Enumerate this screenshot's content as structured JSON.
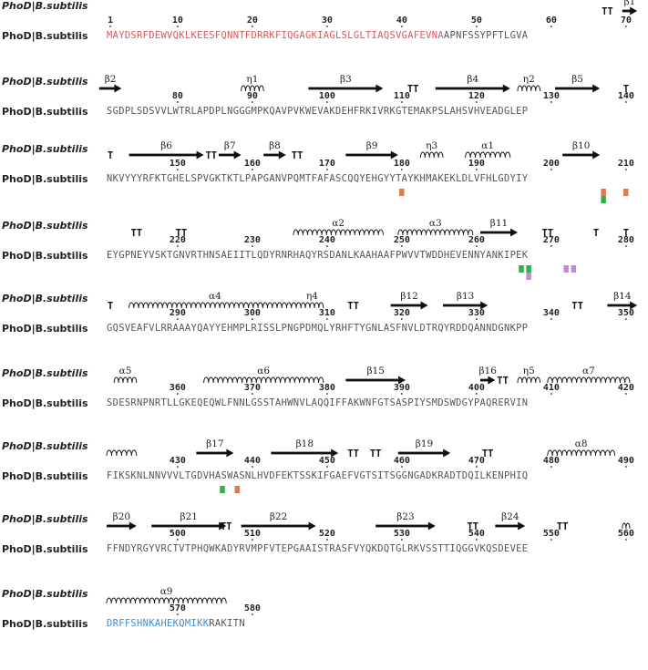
{
  "sequence_name": "PhoD|B.subtilis",
  "blocks": [
    {
      "segments": [
        {
          "text": "MAYDSRFDEWVQKLKEESFQNNTFDRRKFIQGAGKIAGLSLGLTIAQSVGAFEVNA",
          "color": "red"
        },
        {
          "text": "APNFSSYPFTLGVA",
          "color": "normal"
        }
      ],
      "numbers": [
        "1",
        "10",
        "20",
        "30",
        "40",
        "50",
        "60",
        "70"
      ],
      "elements": [
        {
          "type": "turn",
          "text": "TT"
        },
        {
          "type": "strand",
          "label": "β1"
        }
      ],
      "marks": []
    },
    {
      "segments": [
        {
          "text": "SGDPLSDSVVLWTRLAPDPLNGGGMPKQAVPVKWEVAKDEHFRKIVRKGTEMAKPSLAHSVHVEADGLEP",
          "color": "normal"
        }
      ],
      "numbers": [
        "80",
        "90",
        "100",
        "110",
        "120",
        "130",
        "140"
      ],
      "elements": [
        {
          "type": "strand",
          "label": "β2"
        },
        {
          "type": "helix",
          "label": "η1"
        },
        {
          "type": "strand",
          "label": "β3"
        },
        {
          "type": "turn",
          "text": "TT"
        },
        {
          "type": "strand",
          "label": "β4"
        },
        {
          "type": "helix",
          "label": "η2"
        },
        {
          "type": "strand",
          "label": "β5"
        },
        {
          "type": "turn",
          "text": "T"
        }
      ],
      "marks": []
    },
    {
      "segments": [
        {
          "text": "NKVYYYRFKTGHELSPVGKTKTLPAPGANVPQMTFAFASCQQYEHGYYTAYKHMAKEKLDLVFHLGDYIY",
          "color": "normal"
        }
      ],
      "numbers": [
        "150",
        "160",
        "170",
        "180",
        "190",
        "200",
        "210"
      ],
      "elements": [
        {
          "type": "turn",
          "text": "T"
        },
        {
          "type": "strand",
          "label": "β6"
        },
        {
          "type": "turn",
          "text": "TT"
        },
        {
          "type": "strand",
          "label": "β7"
        },
        {
          "type": "strand",
          "label": "β8"
        },
        {
          "type": "turn",
          "text": "TT"
        },
        {
          "type": "strand",
          "label": "β9"
        },
        {
          "type": "helix",
          "label": "η3"
        },
        {
          "type": "helix",
          "label": "α1"
        },
        {
          "type": "strand",
          "label": "β10"
        }
      ],
      "marks": [
        "#e07a4f",
        "#e07a4f",
        "#2db34a",
        "#e07a4f"
      ]
    },
    {
      "segments": [
        {
          "text": "EYGPNEYVSKTGNVRTHNSAEIITLQDYRNRHAQYRSDANLKAAHAAFPWVVTWDDHEVENNYANKIPEK",
          "color": "normal"
        }
      ],
      "numbers": [
        "220",
        "230",
        "240",
        "250",
        "260",
        "270",
        "280"
      ],
      "elements": [
        {
          "type": "turn",
          "text": "TT"
        },
        {
          "type": "turn",
          "text": "TT"
        },
        {
          "type": "helix",
          "label": "α2"
        },
        {
          "type": "helix",
          "label": "α3"
        },
        {
          "type": "strand",
          "label": "β11"
        },
        {
          "type": "turn",
          "text": "TT"
        },
        {
          "type": "turn",
          "text": "T"
        },
        {
          "type": "turn",
          "text": "T"
        }
      ],
      "marks": [
        "#2db34a",
        "#2db34a",
        "#c08ad8",
        "#c08ad8",
        "#c08ad8"
      ]
    },
    {
      "segments": [
        {
          "text": "GQSVEAFVLRRAAAYQAYYEHMPLRISSLPNGPDMQLYRHFTYGNLASFNVLDTRQYRDDQANNDGNKPP",
          "color": "normal"
        }
      ],
      "numbers": [
        "290",
        "300",
        "310",
        "320",
        "330",
        "340",
        "350"
      ],
      "elements": [
        {
          "type": "turn",
          "text": "T"
        },
        {
          "type": "helix",
          "label": "α4"
        },
        {
          "type": "helix",
          "label": "η4"
        },
        {
          "type": "turn",
          "text": "TT"
        },
        {
          "type": "strand",
          "label": "β12"
        },
        {
          "type": "strand",
          "label": "β13"
        },
        {
          "type": "turn",
          "text": "TT"
        },
        {
          "type": "strand",
          "label": "β14"
        }
      ],
      "marks": []
    },
    {
      "segments": [
        {
          "text": "SDESRNPNRTLLGKEQEQWLFNNLGSSTAHWNVLAQQIFFAKWNFGTSASPIYSMDSWDGYPAQRERVIN",
          "color": "normal"
        }
      ],
      "numbers": [
        "360",
        "370",
        "380",
        "390",
        "400",
        "410",
        "420"
      ],
      "elements": [
        {
          "type": "helix",
          "label": "α5"
        },
        {
          "type": "helix",
          "label": "α6"
        },
        {
          "type": "strand",
          "label": "β15"
        },
        {
          "type": "strand",
          "label": "β16"
        },
        {
          "type": "turn",
          "text": "TT"
        },
        {
          "type": "helix",
          "label": "η5"
        },
        {
          "type": "helix",
          "label": "α7"
        }
      ],
      "marks": []
    },
    {
      "segments": [
        {
          "text": "FIKSKNLNNVVVLTGDVHASWASNLHVDFEKTSSKIFGAEFVGTSITSGGNGADKRADTDQILKENPHIQ",
          "color": "normal"
        }
      ],
      "numbers": [
        "430",
        "440",
        "450",
        "460",
        "470",
        "480",
        "490"
      ],
      "elements": [
        {
          "type": "helix",
          "label": ""
        },
        {
          "type": "strand",
          "label": "β17"
        },
        {
          "type": "strand",
          "label": "β18"
        },
        {
          "type": "turn",
          "text": "TT"
        },
        {
          "type": "turn",
          "text": "TT"
        },
        {
          "type": "strand",
          "label": "β19"
        },
        {
          "type": "turn",
          "text": "TT"
        },
        {
          "type": "helix",
          "label": "α8"
        }
      ],
      "marks": [
        "#2db34a",
        "#e07a4f"
      ]
    },
    {
      "segments": [
        {
          "text": "FFNDYRGYVRCTVTPHQWKADYRVMPFVTEPGAAISTRASFVYQKDQTGLRKVSSTTIQGGVKQSDEVEE",
          "color": "normal"
        }
      ],
      "numbers": [
        "500",
        "510",
        "520",
        "530",
        "540",
        "550",
        "560"
      ],
      "elements": [
        {
          "type": "strand",
          "label": "β20"
        },
        {
          "type": "strand",
          "label": "β21"
        },
        {
          "type": "turn",
          "text": "TT"
        },
        {
          "type": "strand",
          "label": "β22"
        },
        {
          "type": "strand",
          "label": "β23"
        },
        {
          "type": "turn",
          "text": "TT"
        },
        {
          "type": "strand",
          "label": "β24"
        },
        {
          "type": "turn",
          "text": "TT"
        },
        {
          "type": "helix",
          "label": ""
        }
      ],
      "marks": []
    },
    {
      "segments": [
        {
          "text": "DRFFSHNKAHEKQMIKK",
          "color": "blue"
        },
        {
          "text": "RAKITN",
          "color": "normal"
        }
      ],
      "numbers": [
        "570",
        "580"
      ],
      "elements": [
        {
          "type": "helix",
          "label": "α9"
        }
      ],
      "marks": []
    }
  ],
  "colors": {
    "signal_peptide": "#d9585c",
    "c_terminal_region": "#3a8fce",
    "mark_orange": "#e07a4f",
    "mark_green": "#2db34a",
    "mark_purple": "#c08ad8"
  }
}
